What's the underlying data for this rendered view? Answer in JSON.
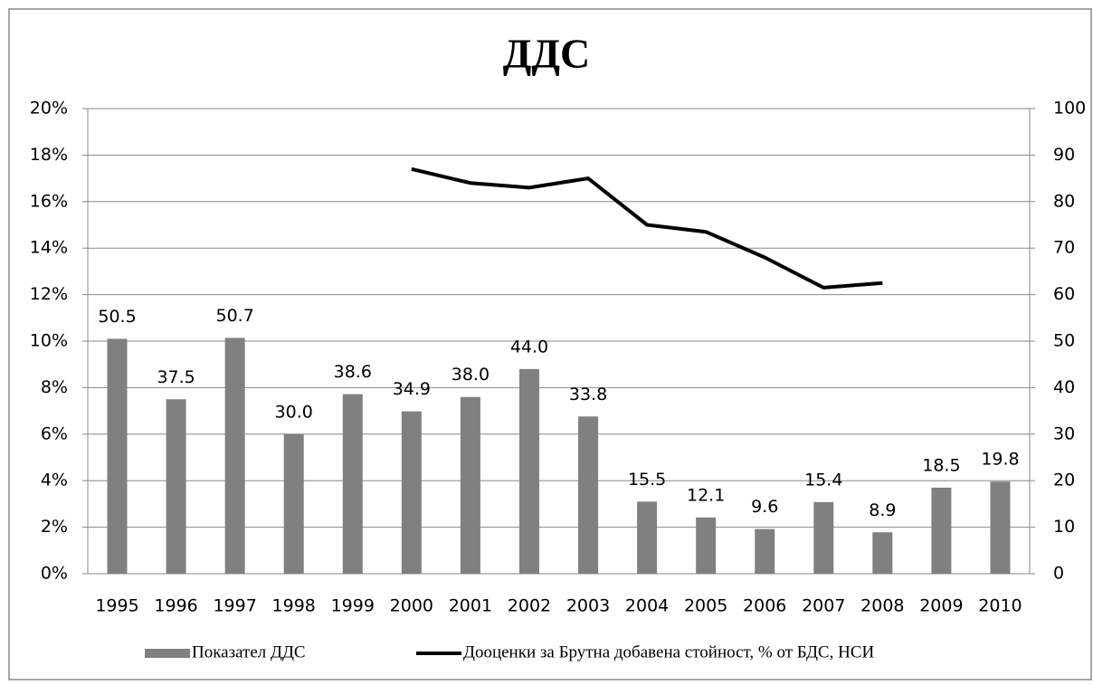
{
  "chart_data": {
    "type": "bar-line",
    "title": "ДДС",
    "categories": [
      "1995",
      "1996",
      "1997",
      "1998",
      "1999",
      "2000",
      "2001",
      "2002",
      "2003",
      "2004",
      "2005",
      "2006",
      "2007",
      "2008",
      "2009",
      "2010"
    ],
    "series": [
      {
        "name": "Показател ДДС",
        "type": "bar",
        "axis": "y2",
        "color": "#808080",
        "values": [
          50.5,
          37.5,
          50.7,
          30.0,
          38.6,
          34.9,
          38.0,
          44.0,
          33.8,
          15.5,
          12.1,
          9.6,
          15.4,
          8.9,
          18.5,
          19.8
        ],
        "value_labels": [
          "50.5",
          "37.5",
          "50.7",
          "30.0",
          "38.6",
          "34.9",
          "38.0",
          "44.0",
          "33.8",
          "15.5",
          "12.1",
          "9.6",
          "15.4",
          "8.9",
          "18.5",
          "19.8"
        ]
      },
      {
        "name": "Дооценки за Брутна добавена стойност, % от БДС, НСИ",
        "type": "line",
        "axis": "y",
        "color": "#000000",
        "values": [
          null,
          null,
          null,
          null,
          null,
          17.4,
          16.8,
          16.6,
          17.0,
          15.0,
          14.7,
          13.6,
          12.3,
          12.5,
          null,
          null
        ]
      }
    ],
    "ylim": [
      0,
      20
    ],
    "yticks": [
      {
        "value": 0,
        "label": "0%"
      },
      {
        "value": 2,
        "label": "2%"
      },
      {
        "value": 4,
        "label": "4%"
      },
      {
        "value": 6,
        "label": "6%"
      },
      {
        "value": 8,
        "label": "8%"
      },
      {
        "value": 10,
        "label": "10%"
      },
      {
        "value": 12,
        "label": "12%"
      },
      {
        "value": 14,
        "label": "14%"
      },
      {
        "value": 16,
        "label": "16%"
      },
      {
        "value": 18,
        "label": "18%"
      },
      {
        "value": 20,
        "label": "20%"
      }
    ],
    "y2lim": [
      0,
      100
    ],
    "y2ticks": [
      0,
      10,
      20,
      30,
      40,
      50,
      60,
      70,
      80,
      90,
      100
    ],
    "grid": true,
    "legend": "bottom"
  }
}
